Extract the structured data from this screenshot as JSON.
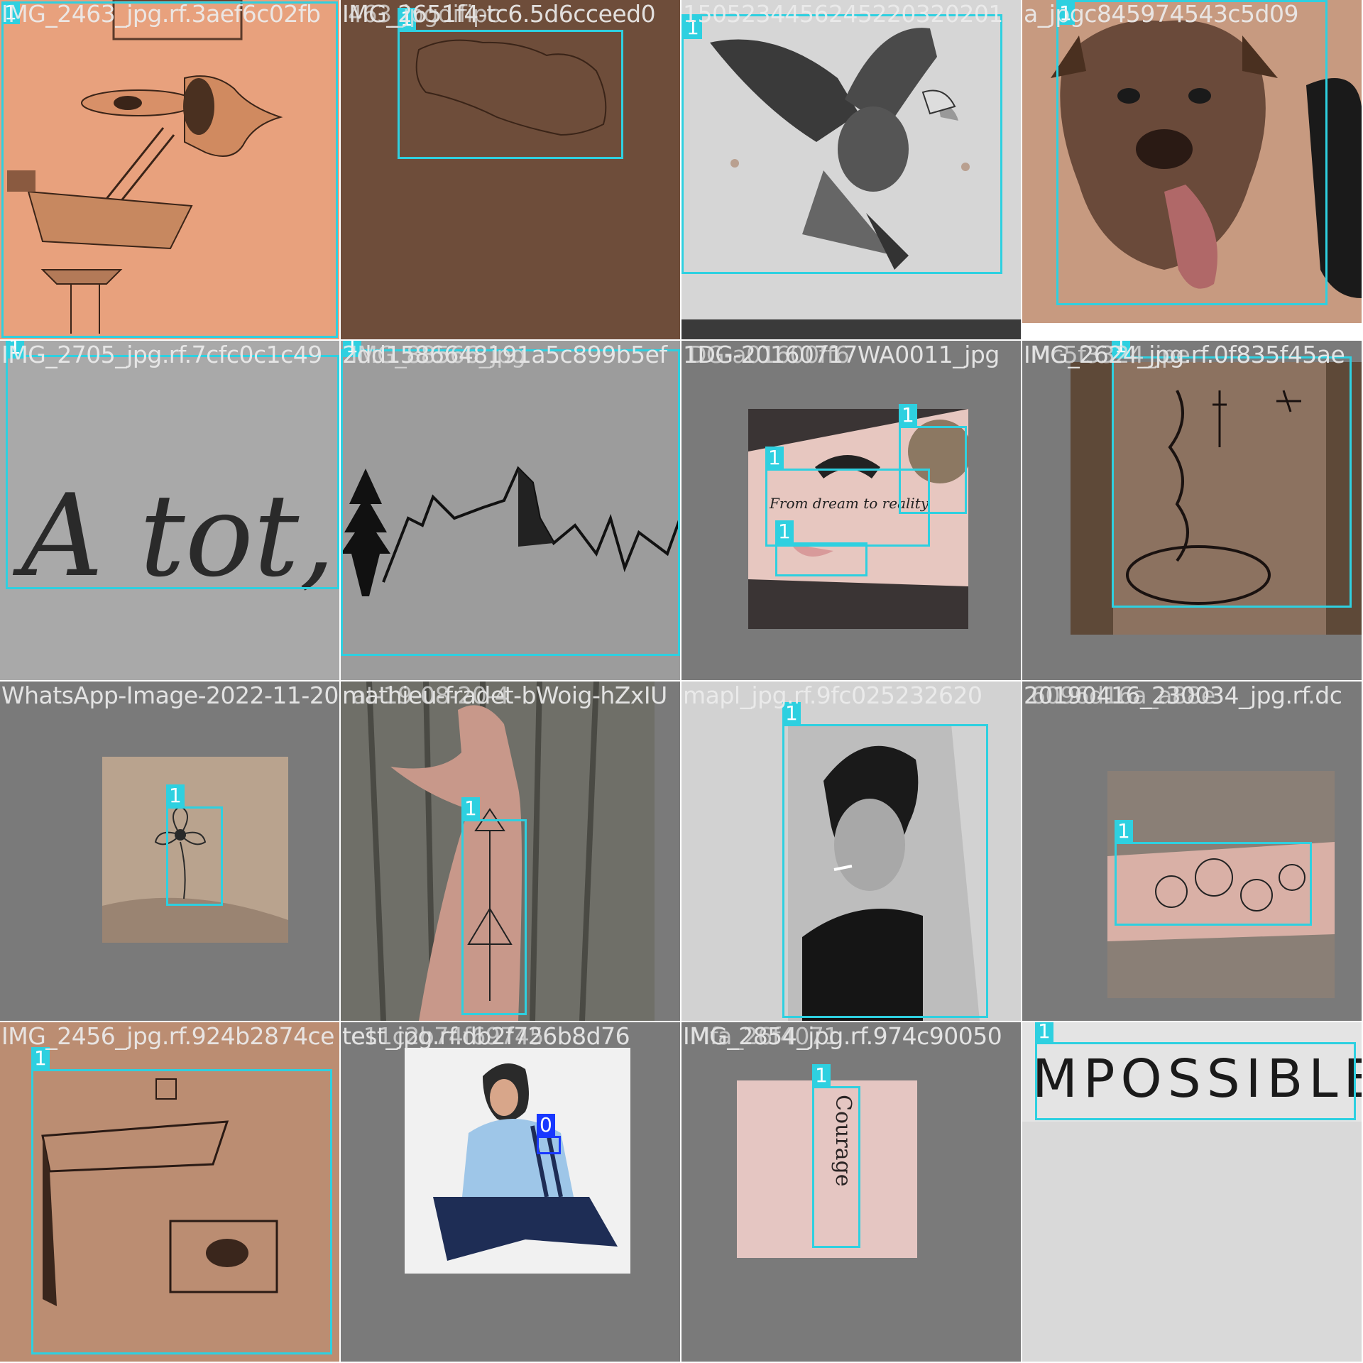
{
  "grid": {
    "rows": 4,
    "cols": 4,
    "colors": {
      "class0": "#1838ff",
      "class1": "#2ed0e0",
      "filename_text": "#ebebeb",
      "letterbox": "#7a7a7a"
    }
  },
  "tiles": [
    {
      "filename": "IMG_2463_jpg.rf.3aef6c02fb",
      "overlay_filename": "",
      "labels": [
        "1"
      ],
      "subject": "surreal head with ladder tattoo"
    },
    {
      "filename": "IMG_2651f4-tc6.5d6cceed0",
      "overlay_filename": "463_jpgdifipc",
      "labels": [
        "1"
      ],
      "subject": "island outline tattoo"
    },
    {
      "filename": "1505234456245220320201",
      "overlay_filename": "",
      "labels": [
        "1"
      ],
      "subject": "eagle chest tattoo"
    },
    {
      "filename": "a_jpgc845974543c5d09",
      "overlay_filename": "",
      "labels": [
        "1"
      ],
      "subject": "pitbull dog portrait tattoo"
    },
    {
      "filename": "IMG_2705_jpg.rf.7cfc0c1c49",
      "overlay_filename": "",
      "labels": [
        "1"
      ],
      "subject": "script lettering tattoo",
      "tattoo_text": "A tot, si"
    },
    {
      "filename": "2dd1586648191a5c899b5ef",
      "overlay_filename": "IMG_88566_jpg",
      "labels": [
        "1"
      ],
      "subject": "mountain and pine tree tattoo"
    },
    {
      "filename": "1DG-20160717WA0011_jpg",
      "overlay_filename": "DG-a01600ff6",
      "labels": [
        "1",
        "1",
        "1"
      ],
      "subject": "forearm with bike wheel and moon",
      "tattoo_text": "From dream to reality"
    },
    {
      "filename": "IMG_2624_jpg.rf.0f835f45ae",
      "overlay_filename": "Mc5f3324_jpe",
      "labels": [
        "1"
      ],
      "subject": "vertical script tattoo"
    },
    {
      "filename": "WhatsApp-Image-2022-11-20",
      "overlay_filename": "",
      "labels": [
        "1"
      ],
      "subject": "small flower tattoo on arm"
    },
    {
      "filename": "mathieu-fradet-bWoig-hZxIU",
      "overlay_filename": "at-19-08-20-4",
      "labels": [
        "1"
      ],
      "subject": "arrow forearm tattoo"
    },
    {
      "filename": "mapl_jpg.rf.9fc025232620",
      "overlay_filename": "",
      "labels": [
        "1"
      ],
      "subject": "realistic portrait with cigarette"
    },
    {
      "filename": "20190416_230034_jpg.rf.dc",
      "overlay_filename": "6096d16a_a88e",
      "labels": [
        "1"
      ],
      "subject": "floral forearm tattoo"
    },
    {
      "filename": "IMG_2456_jpg.rf.924b2874ce",
      "overlay_filename": "",
      "labels": [
        "1"
      ],
      "subject": "geometric grid illusion tattoo"
    },
    {
      "filename": "test_jpg.rf.db2f726b8d76",
      "overlay_filename": "c11c2b74f69745",
      "labels": [
        "0"
      ],
      "subject": "woman in blue track jacket with logo"
    },
    {
      "filename": "IMG_2854_jpg.rf.974c90050",
      "overlay_filename": "Mfa_26f4071",
      "labels": [
        "1"
      ],
      "subject": "vertical word tattoo",
      "tattoo_text": "Courage"
    },
    {
      "filename": "",
      "overlay_filename": "",
      "labels": [
        "1"
      ],
      "subject": "word tattoo",
      "tattoo_text": "MPOSSIBLE"
    }
  ]
}
